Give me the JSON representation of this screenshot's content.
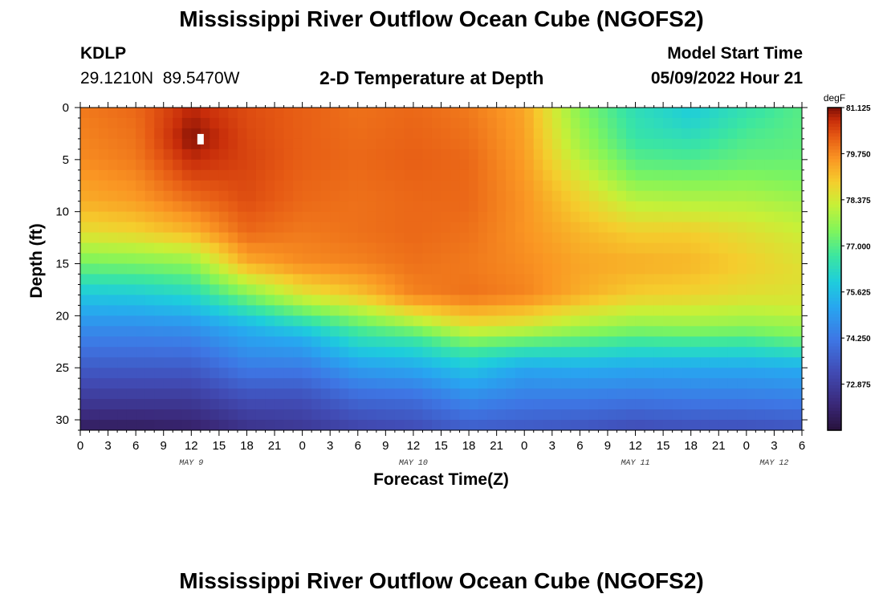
{
  "chart_data": {
    "type": "heatmap",
    "title": "Mississippi River Outflow Ocean Cube (NGOFS2)",
    "subtitle": "2-D Temperature at Depth",
    "station": {
      "id": "KDLP",
      "coords": "29.1210N  89.5470W"
    },
    "model_start": {
      "label": "Model Start Time",
      "value": "05/09/2022 Hour 21"
    },
    "xlabel": "Forecast Time(Z)",
    "ylabel": "Depth (ft)",
    "xlim": [
      0,
      78
    ],
    "ylim": [
      0,
      31
    ],
    "x_tick_labels": [
      "0",
      "3",
      "6",
      "9",
      "12",
      "15",
      "18",
      "21",
      "0",
      "3",
      "6",
      "9",
      "12",
      "15",
      "18",
      "21",
      "0",
      "3",
      "6",
      "9",
      "12",
      "15",
      "18",
      "21",
      "0",
      "3",
      "6"
    ],
    "y_ticks": [
      0,
      5,
      10,
      15,
      20,
      25,
      30
    ],
    "date_labels": [
      {
        "label": "MAY 9",
        "hour": 12
      },
      {
        "label": "MAY 10",
        "hour": 36
      },
      {
        "label": "MAY 11",
        "hour": 60
      },
      {
        "label": "MAY 12",
        "hour": 75
      }
    ],
    "colorbar": {
      "unit": "degF",
      "min": 71.5,
      "max": 81.125,
      "ticks": [
        "81.125",
        "79.750",
        "78.375",
        "77.000",
        "75.625",
        "74.250",
        "72.875"
      ]
    },
    "max_marker": {
      "hour": 13,
      "depth": 3
    },
    "profiles": [
      {
        "hour": 0,
        "depths": [
          0,
          5,
          9,
          12,
          15,
          18,
          21,
          25,
          28,
          31
        ],
        "temps": [
          79.9,
          79.7,
          79.3,
          78.6,
          77.3,
          75.8,
          74.7,
          73.6,
          72.8,
          71.9
        ]
      },
      {
        "hour": 6,
        "depths": [
          0,
          5,
          9,
          12,
          15,
          18,
          21,
          25,
          28,
          31
        ],
        "temps": [
          80.1,
          79.9,
          79.5,
          78.8,
          77.4,
          75.9,
          74.7,
          73.6,
          72.8,
          71.9
        ]
      },
      {
        "hour": 12,
        "depths": [
          0,
          3,
          6,
          9,
          12,
          15,
          18,
          21,
          25,
          28,
          31
        ],
        "temps": [
          80.8,
          81.1,
          80.6,
          80.0,
          79.2,
          77.6,
          76.2,
          74.8,
          73.6,
          72.8,
          72.0
        ]
      },
      {
        "hour": 18,
        "depths": [
          0,
          5,
          9,
          12,
          15,
          18,
          21,
          25,
          28,
          31
        ],
        "temps": [
          80.4,
          80.5,
          80.4,
          80.1,
          79.3,
          77.4,
          75.4,
          74.3,
          73.3,
          72.5
        ]
      },
      {
        "hour": 24,
        "depths": [
          0,
          5,
          9,
          12,
          15,
          18,
          20,
          22,
          25,
          28,
          31
        ],
        "temps": [
          80.2,
          80.2,
          80.1,
          79.9,
          79.7,
          78.5,
          76.9,
          75.4,
          74.3,
          73.3,
          72.7
        ]
      },
      {
        "hour": 30,
        "depths": [
          0,
          5,
          9,
          12,
          15,
          18,
          21,
          25,
          28,
          31
        ],
        "temps": [
          80.0,
          80.1,
          80.0,
          80.0,
          79.8,
          79.0,
          77.0,
          75.0,
          73.9,
          73.0
        ]
      },
      {
        "hour": 36,
        "depths": [
          0,
          5,
          9,
          12,
          15,
          18,
          20,
          22,
          25,
          28,
          31
        ],
        "temps": [
          80.1,
          80.2,
          80.1,
          80.1,
          80.0,
          79.8,
          78.5,
          76.8,
          75.2,
          74.0,
          73.2
        ]
      },
      {
        "hour": 42,
        "depths": [
          0,
          5,
          9,
          12,
          15,
          18,
          21,
          23,
          25,
          28,
          31
        ],
        "temps": [
          79.9,
          80.1,
          80.1,
          80.0,
          79.9,
          80.0,
          78.6,
          77.0,
          75.8,
          74.6,
          73.6
        ]
      },
      {
        "hour": 48,
        "depths": [
          0,
          5,
          9,
          12,
          15,
          18,
          21,
          23,
          25,
          28,
          31
        ],
        "temps": [
          79.4,
          79.5,
          79.6,
          79.6,
          79.7,
          79.8,
          78.4,
          76.7,
          75.2,
          74.3,
          73.5
        ]
      },
      {
        "hour": 54,
        "depths": [
          0,
          4,
          8,
          12,
          15,
          18,
          21,
          23,
          25,
          28,
          31
        ],
        "temps": [
          77.5,
          77.9,
          78.7,
          79.2,
          79.4,
          79.3,
          77.9,
          76.6,
          75.3,
          74.3,
          73.4
        ]
      },
      {
        "hour": 60,
        "depths": [
          0,
          3,
          6,
          9,
          12,
          15,
          18,
          21,
          25,
          28,
          31
        ],
        "temps": [
          76.4,
          76.6,
          77.2,
          78.1,
          78.9,
          79.3,
          78.9,
          77.6,
          75.2,
          74.2,
          73.2
        ]
      },
      {
        "hour": 66,
        "depths": [
          0,
          2,
          5,
          9,
          12,
          15,
          18,
          21,
          25,
          28,
          31
        ],
        "temps": [
          75.9,
          76.2,
          76.9,
          78.0,
          78.9,
          79.2,
          78.8,
          77.7,
          75.2,
          74.3,
          73.3
        ]
      },
      {
        "hour": 72,
        "depths": [
          0,
          3,
          6,
          9,
          12,
          15,
          18,
          21,
          25,
          28,
          31
        ],
        "temps": [
          76.5,
          76.9,
          77.3,
          78.0,
          78.6,
          78.9,
          78.6,
          77.6,
          75.2,
          74.3,
          73.3
        ]
      },
      {
        "hour": 78,
        "depths": [
          0,
          4,
          7,
          10,
          13,
          16,
          19,
          22,
          25,
          28,
          31
        ],
        "temps": [
          77.0,
          77.1,
          77.4,
          78.0,
          78.4,
          78.6,
          78.4,
          77.4,
          75.3,
          74.4,
          73.4
        ]
      }
    ]
  }
}
